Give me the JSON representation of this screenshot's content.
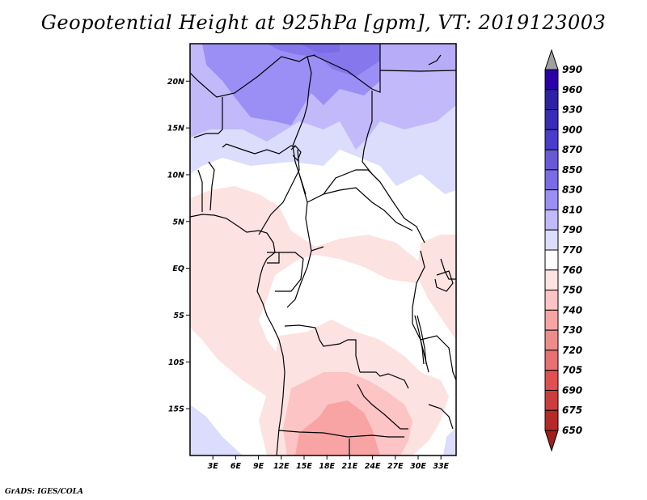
{
  "title": "Geopotential Height at 925hPa [gpm], VT: 2019123003",
  "footer": "GrADS: IGES/COLA",
  "map": {
    "variable": "Geopotential Height",
    "level": "925hPa",
    "units": "gpm",
    "valid_time": "2019123003",
    "lon_range": [
      0,
      35
    ],
    "lat_range": [
      -20,
      24
    ],
    "lat_ticks": [
      {
        "value": 20,
        "label": "20N"
      },
      {
        "value": 15,
        "label": "15N"
      },
      {
        "value": 10,
        "label": "10N"
      },
      {
        "value": 5,
        "label": "5N"
      },
      {
        "value": 0,
        "label": "EQ"
      },
      {
        "value": -5,
        "label": "5S"
      },
      {
        "value": -10,
        "label": "10S"
      },
      {
        "value": -15,
        "label": "15S"
      }
    ],
    "lon_ticks": [
      {
        "value": 3,
        "label": "3E"
      },
      {
        "value": 6,
        "label": "6E"
      },
      {
        "value": 9,
        "label": "9E"
      },
      {
        "value": 12,
        "label": "12E"
      },
      {
        "value": 15,
        "label": "15E"
      },
      {
        "value": 18,
        "label": "18E"
      },
      {
        "value": 21,
        "label": "21E"
      },
      {
        "value": 24,
        "label": "24E"
      },
      {
        "value": 27,
        "label": "27E"
      },
      {
        "value": 30,
        "label": "30E"
      },
      {
        "value": 33,
        "label": "33E"
      }
    ]
  },
  "colorbar": {
    "levels": [
      "990",
      "960",
      "930",
      "900",
      "870",
      "850",
      "830",
      "810",
      "790",
      "770",
      "760",
      "750",
      "740",
      "730",
      "720",
      "705",
      "690",
      "675",
      "650"
    ],
    "colors": [
      "#2a00a8",
      "#2d22a6",
      "#3a2bb8",
      "#4a3ccc",
      "#6a5ad8",
      "#7b6be6",
      "#9b8ff5",
      "#c2b9fb",
      "#dcdcfc",
      "#ffffff",
      "#fde2e2",
      "#fcc4c4",
      "#f8a4a4",
      "#ee8c8c",
      "#e87070",
      "#e05050",
      "#cc3c3c",
      "#b82828"
    ],
    "top_arrow_color": "#a0a0a0",
    "bottom_arrow_color": "#a01e1e"
  }
}
